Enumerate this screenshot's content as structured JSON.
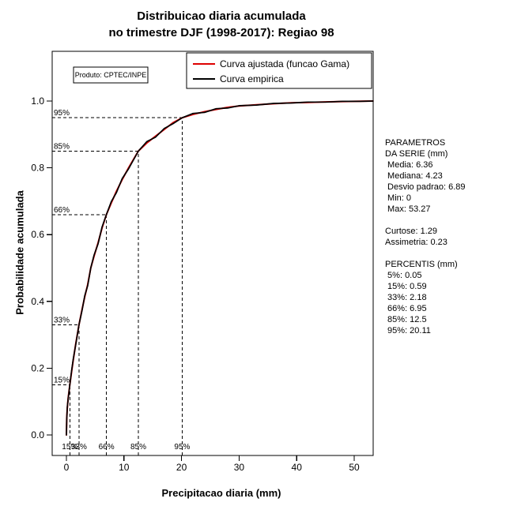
{
  "title": {
    "line1": "Distribuicao diaria acumulada",
    "line2": "no trimestre DJF (1998-2017): Regiao 98"
  },
  "product_label": "Produto: CPTEC/INPE",
  "axes": {
    "xlabel": "Precipitacao diaria (mm)",
    "ylabel": "Probabilidade acumulada",
    "x_ticks": [
      "0",
      "10",
      "20",
      "30",
      "40",
      "50"
    ],
    "y_ticks": [
      "0.0",
      "0.2",
      "0.4",
      "0.6",
      "0.8",
      "1.0"
    ]
  },
  "stats_panel": {
    "lines": [
      "PARAMETROS",
      "DA SERIE (mm)",
      " Media: 6.36",
      " Mediana: 4.23",
      " Desvio padrao: 6.89",
      " Min: 0",
      " Max: 53.27",
      "",
      "Curtose: 1.29",
      "Assimetria: 0.23",
      "",
      "PERCENTIS (mm)",
      " 5%: 0.05",
      " 15%: 0.59",
      " 33%: 2.18",
      " 66%: 6.95",
      " 85%: 12.5",
      " 95%: 20.11"
    ]
  },
  "chart_data": {
    "type": "line",
    "title": "Distribuicao diaria acumulada no trimestre DJF (1998-2017): Regiao 98",
    "xlabel": "Precipitacao diaria (mm)",
    "ylabel": "Probabilidade acumulada",
    "xlim": [
      0,
      53.27
    ],
    "ylim": [
      0,
      1
    ],
    "grid": false,
    "legend_position": "top-right-inside",
    "x_ticks": [
      0,
      10,
      20,
      30,
      40,
      50
    ],
    "y_ticks": [
      0.0,
      0.2,
      0.4,
      0.6,
      0.8,
      1.0
    ],
    "series": [
      {
        "name": "Curva ajustada (funcao Gama)",
        "color": "#dd0000",
        "x": [
          0,
          0.05,
          0.15,
          0.3,
          0.59,
          0.9,
          1.2,
          1.6,
          2.18,
          2.7,
          3.2,
          3.7,
          4.23,
          4.8,
          5.5,
          6.2,
          6.95,
          7.8,
          8.7,
          9.7,
          10.8,
          12.5,
          14,
          15.5,
          17,
          18.5,
          20.11,
          22,
          24,
          26,
          28,
          30,
          33,
          36,
          39,
          42,
          45,
          48,
          51,
          53.27
        ],
        "y": [
          0,
          0.05,
          0.08,
          0.11,
          0.15,
          0.19,
          0.225,
          0.27,
          0.33,
          0.375,
          0.415,
          0.45,
          0.5,
          0.535,
          0.575,
          0.62,
          0.66,
          0.695,
          0.73,
          0.765,
          0.8,
          0.85,
          0.875,
          0.895,
          0.915,
          0.935,
          0.95,
          0.96,
          0.968,
          0.975,
          0.981,
          0.985,
          0.989,
          0.992,
          0.9945,
          0.996,
          0.9975,
          0.9985,
          0.9993,
          1.0
        ]
      },
      {
        "name": "Curva empirica",
        "color": "#000000",
        "x": [
          0,
          0.05,
          0.15,
          0.3,
          0.59,
          0.9,
          1.2,
          1.6,
          2.18,
          2.7,
          3.2,
          3.7,
          4.23,
          4.8,
          5.5,
          6.2,
          6.95,
          7.8,
          8.7,
          9.7,
          10.8,
          12.5,
          14,
          15.5,
          17,
          18.5,
          20.11,
          22,
          24,
          26,
          28,
          30,
          33,
          36,
          39,
          42,
          45,
          48,
          51,
          53.27
        ],
        "y": [
          0,
          0.046,
          0.082,
          0.108,
          0.15,
          0.193,
          0.228,
          0.268,
          0.33,
          0.372,
          0.418,
          0.447,
          0.5,
          0.538,
          0.572,
          0.623,
          0.66,
          0.699,
          0.726,
          0.768,
          0.797,
          0.85,
          0.879,
          0.892,
          0.918,
          0.932,
          0.95,
          0.963,
          0.966,
          0.977,
          0.979,
          0.986,
          0.988,
          0.993,
          0.994,
          0.997,
          0.997,
          0.999,
          0.999,
          1.0
        ]
      }
    ],
    "percentile_markers": [
      {
        "label": "15%",
        "x": 0.59,
        "p": 0.15
      },
      {
        "label": "33%",
        "x": 2.18,
        "p": 0.33
      },
      {
        "label": "66%",
        "x": 6.95,
        "p": 0.66
      },
      {
        "label": "85%",
        "x": 12.5,
        "p": 0.85
      },
      {
        "label": "95%",
        "x": 20.11,
        "p": 0.95
      }
    ]
  }
}
